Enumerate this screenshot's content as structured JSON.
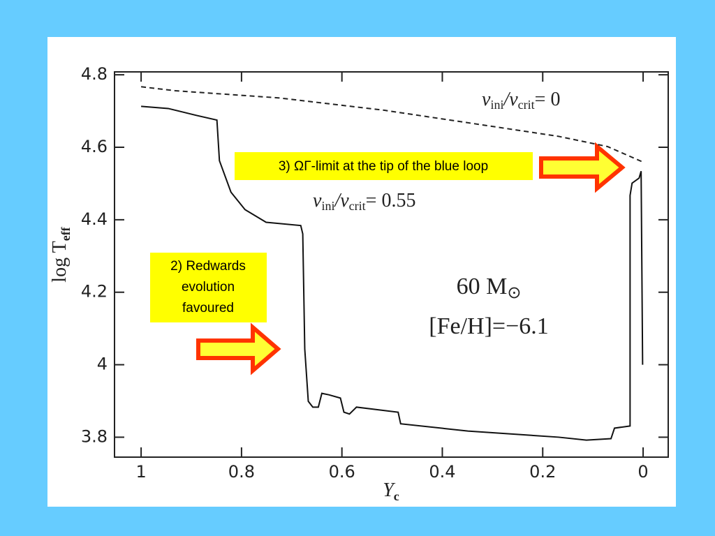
{
  "chart_data": {
    "type": "line",
    "x_label": {
      "text": "Y",
      "sub": "c"
    },
    "y_label": {
      "text": "log T",
      "sub": "eff"
    },
    "xlim": [
      1.053,
      -0.05
    ],
    "ylim": [
      3.745,
      4.808
    ],
    "xticks": [
      1,
      0.8,
      0.6,
      0.4,
      0.2,
      0
    ],
    "yticks": [
      3.8,
      4,
      4.2,
      4.4,
      4.6,
      4.8
    ],
    "series": [
      {
        "name_parts": [
          "v",
          "ini",
          "/v",
          "crit",
          "= 0"
        ],
        "color": "#222222",
        "style": "dashed",
        "x": [
          1.0,
          0.932,
          0.724,
          0.515,
          0.307,
          0.168,
          0.071,
          0
        ],
        "values": [
          4.767,
          4.756,
          4.736,
          4.702,
          4.659,
          4.63,
          4.602,
          4.559
        ]
      },
      {
        "name_parts": [
          "v",
          "ini",
          "/v",
          "crit",
          "= 0.55"
        ],
        "color": "#111111",
        "style": "solid",
        "x": [
          1.0,
          0.946,
          0.89,
          0.849,
          0.844,
          0.821,
          0.793,
          0.751,
          0.682,
          0.678,
          0.674,
          0.667,
          0.658,
          0.647,
          0.64,
          0.626,
          0.603,
          0.596,
          0.585,
          0.571,
          0.488,
          0.483,
          0.349,
          0.168,
          0.113,
          0.064,
          0.057,
          0.026,
          0.026,
          0.022,
          0.008,
          0.004,
          0.001
        ],
        "values": [
          4.713,
          4.707,
          4.688,
          4.675,
          4.563,
          4.476,
          4.428,
          4.393,
          4.384,
          4.361,
          4.043,
          3.899,
          3.883,
          3.883,
          3.921,
          3.917,
          3.908,
          3.869,
          3.864,
          3.883,
          3.869,
          3.837,
          3.817,
          3.8,
          3.792,
          3.796,
          3.825,
          3.831,
          4.467,
          4.501,
          4.515,
          4.534,
          4.0
        ]
      }
    ],
    "annotations": {
      "mass": {
        "text": "60 M",
        "sub": "⊙"
      },
      "metallicity": "[Fe/H]=−6.1",
      "box3": "3) ΩΓ-limit at the tip of the blue loop",
      "box2": [
        "2) Redwards",
        "evolution",
        "favoured"
      ]
    }
  }
}
